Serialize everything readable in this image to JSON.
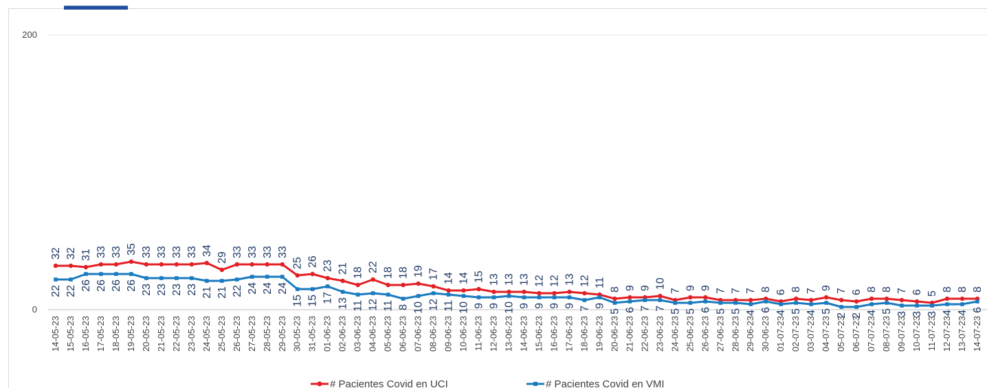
{
  "chart_data": {
    "type": "line",
    "title": "",
    "xlabel": "",
    "ylabel": "",
    "ylim": [
      0,
      200
    ],
    "yticks": [
      "0",
      "200"
    ],
    "grid": true,
    "legend_position": "bottom",
    "categories": [
      "14-05-23",
      "15-05-23",
      "16-05-23",
      "17-05-23",
      "18-05-23",
      "19-05-23",
      "20-05-23",
      "21-05-23",
      "22-05-23",
      "23-05-23",
      "24-05-23",
      "25-05-23",
      "26-05-23",
      "27-05-23",
      "28-05-23",
      "29-05-23",
      "30-05-23",
      "31-05-23",
      "01-06-23",
      "02-06-23",
      "03-06-23",
      "04-06-23",
      "05-06-23",
      "06-06-23",
      "07-06-23",
      "08-06-23",
      "09-06-23",
      "10-06-23",
      "11-06-23",
      "12-06-23",
      "13-06-23",
      "14-06-23",
      "15-06-23",
      "16-06-23",
      "17-06-23",
      "18-06-23",
      "19-06-23",
      "20-06-23",
      "21-06-23",
      "22-06-23",
      "23-06-23",
      "24-06-23",
      "25-06-23",
      "26-06-23",
      "27-06-23",
      "28-06-23",
      "29-06-23",
      "30-06-23",
      "01-07-23",
      "02-07-23",
      "03-07-23",
      "04-07-23",
      "05-07-23",
      "06-07-23",
      "07-07-23",
      "08-07-23",
      "09-07-23",
      "10-07-23",
      "11-07-23",
      "12-07-23",
      "13-07-23",
      "14-07-23"
    ],
    "series": [
      {
        "name": "# Pacientes Covid en UCI",
        "color": "#e31e24",
        "values": [
          32,
          32,
          31,
          33,
          33,
          35,
          33,
          33,
          33,
          33,
          34,
          29,
          33,
          33,
          33,
          33,
          25,
          26,
          23,
          21,
          18,
          22,
          18,
          18,
          19,
          17,
          14,
          14,
          15,
          13,
          13,
          13,
          12,
          12,
          13,
          12,
          11,
          8,
          9,
          9,
          10,
          7,
          9,
          9,
          7,
          7,
          7,
          8,
          6,
          8,
          7,
          9,
          7,
          6,
          8,
          8,
          7,
          6,
          5,
          8,
          8,
          8
        ]
      },
      {
        "name": "# Pacientes Covid en VMI",
        "color": "#1a7bbf",
        "values": [
          22,
          22,
          26,
          26,
          26,
          26,
          23,
          23,
          23,
          23,
          21,
          21,
          22,
          24,
          24,
          24,
          15,
          15,
          17,
          13,
          11,
          12,
          11,
          8,
          10,
          12,
          11,
          10,
          9,
          9,
          10,
          9,
          9,
          9,
          9,
          7,
          9,
          5,
          6,
          7,
          7,
          5,
          5,
          6,
          5,
          5,
          4,
          6,
          4,
          5,
          4,
          5,
          2,
          2,
          4,
          5,
          3,
          3,
          3,
          4,
          4,
          6
        ]
      }
    ]
  }
}
